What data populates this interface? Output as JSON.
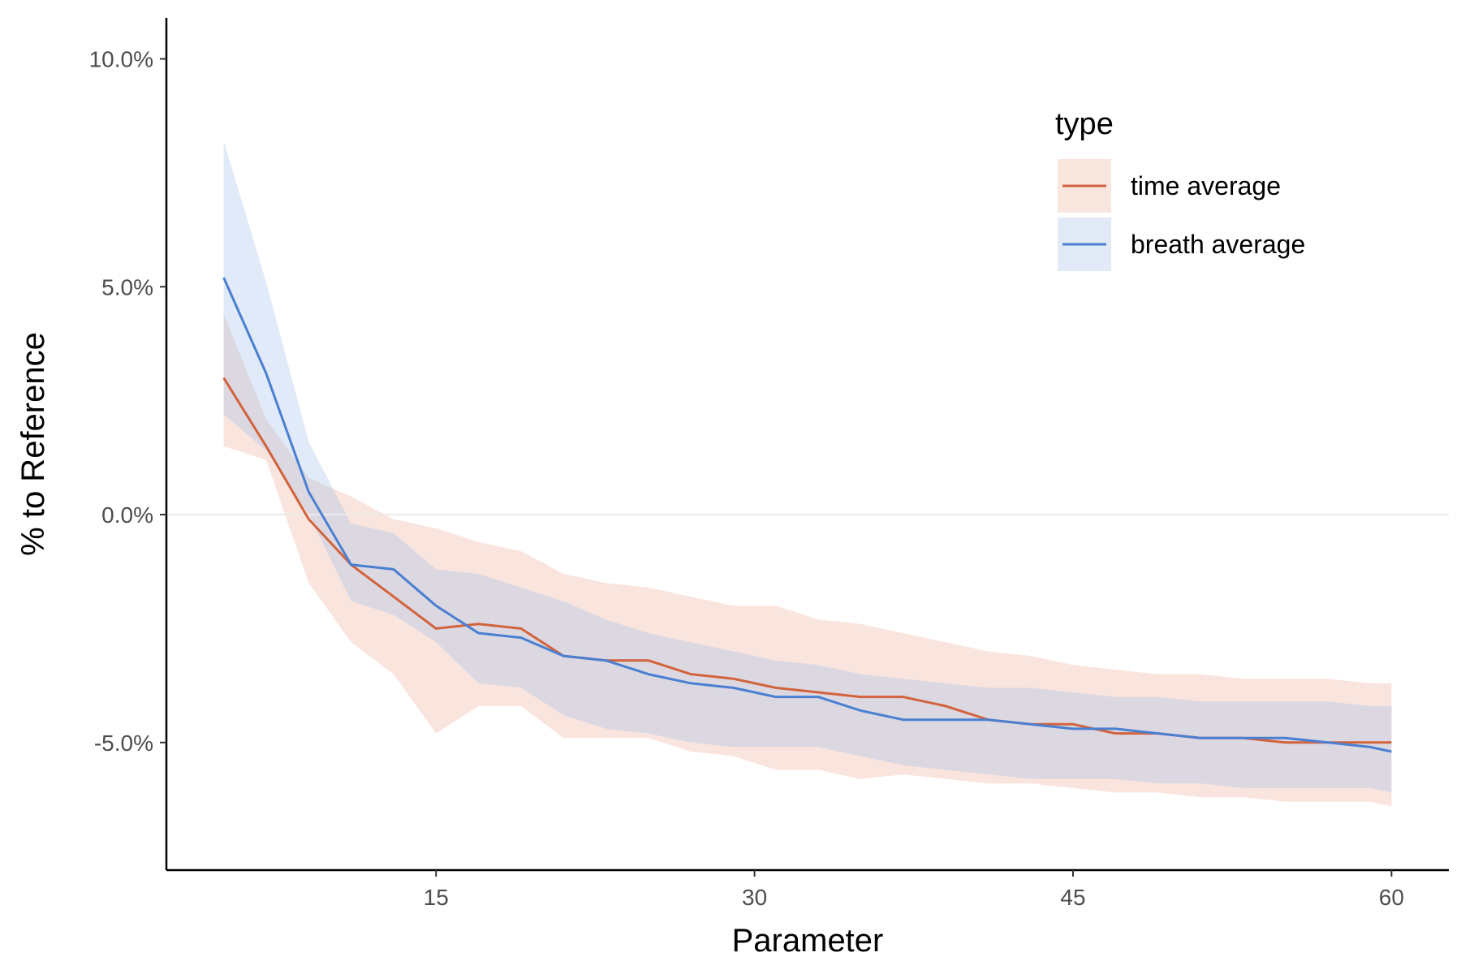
{
  "chart_data": {
    "type": "line",
    "xlabel": "Parameter",
    "ylabel": "% to Reference",
    "xlim": [
      2.3,
      62.7
    ],
    "ylim": [
      -7.8,
      10.9
    ],
    "xticks": [
      15,
      30,
      45,
      60
    ],
    "xtick_labels": [
      "15",
      "30",
      "45",
      "60"
    ],
    "yticks": [
      -5,
      0,
      5,
      10
    ],
    "ytick_labels": [
      "-5.0%",
      "0.0%",
      "5.0%",
      "10.0%"
    ],
    "reference_line": 0,
    "grid": false,
    "legend": {
      "title": "type",
      "position": "top-right",
      "entries": [
        "time average",
        "breath average"
      ]
    },
    "x": [
      5,
      7,
      9,
      11,
      13,
      15,
      17,
      19,
      21,
      23,
      25,
      27,
      29,
      31,
      33,
      35,
      37,
      39,
      41,
      43,
      45,
      47,
      49,
      51,
      53,
      55,
      57,
      59,
      60
    ],
    "series": [
      {
        "name": "time average",
        "color": "#d2633c",
        "band_color": "#f8e6df",
        "values": [
          3.0,
          1.5,
          -0.1,
          -1.1,
          -1.8,
          -2.5,
          -2.4,
          -2.5,
          -3.1,
          -3.2,
          -3.2,
          -3.5,
          -3.6,
          -3.8,
          -3.9,
          -4.0,
          -4.0,
          -4.2,
          -4.5,
          -4.6,
          -4.6,
          -4.8,
          -4.8,
          -4.9,
          -4.9,
          -5.0,
          -5.0,
          -5.0,
          -5.0
        ],
        "lower": [
          1.5,
          1.2,
          -1.5,
          -2.8,
          -3.5,
          -4.8,
          -4.2,
          -4.2,
          -4.9,
          -4.9,
          -4.9,
          -5.2,
          -5.3,
          -5.6,
          -5.6,
          -5.8,
          -5.7,
          -5.8,
          -5.9,
          -5.9,
          -6.0,
          -6.1,
          -6.1,
          -6.2,
          -6.2,
          -6.3,
          -6.3,
          -6.3,
          -6.4
        ],
        "upper": [
          4.4,
          2.1,
          0.8,
          0.4,
          -0.1,
          -0.3,
          -0.6,
          -0.8,
          -1.3,
          -1.5,
          -1.6,
          -1.8,
          -2.0,
          -2.0,
          -2.3,
          -2.4,
          -2.6,
          -2.8,
          -3.0,
          -3.1,
          -3.3,
          -3.4,
          -3.5,
          -3.5,
          -3.6,
          -3.6,
          -3.6,
          -3.7,
          -3.7
        ]
      },
      {
        "name": "breath average",
        "color": "#4a7fd1",
        "band_color": "#e2eaf8",
        "values": [
          5.2,
          3.1,
          0.5,
          -1.1,
          -1.2,
          -2.0,
          -2.6,
          -2.7,
          -3.1,
          -3.2,
          -3.5,
          -3.7,
          -3.8,
          -4.0,
          -4.0,
          -4.3,
          -4.5,
          -4.5,
          -4.5,
          -4.6,
          -4.7,
          -4.7,
          -4.8,
          -4.9,
          -4.9,
          -4.9,
          -5.0,
          -5.1,
          -5.2
        ],
        "lower": [
          2.2,
          1.4,
          0.0,
          -1.9,
          -2.2,
          -2.8,
          -3.7,
          -3.8,
          -4.4,
          -4.7,
          -4.8,
          -5.0,
          -5.1,
          -5.1,
          -5.1,
          -5.3,
          -5.5,
          -5.6,
          -5.7,
          -5.8,
          -5.8,
          -5.8,
          -5.9,
          -5.9,
          -6.0,
          -6.0,
          -6.0,
          -6.0,
          -6.1
        ],
        "upper": [
          8.2,
          5.1,
          1.6,
          -0.2,
          -0.4,
          -1.2,
          -1.3,
          -1.6,
          -1.9,
          -2.3,
          -2.6,
          -2.8,
          -3.0,
          -3.2,
          -3.3,
          -3.5,
          -3.6,
          -3.7,
          -3.8,
          -3.8,
          -3.9,
          -4.0,
          -4.0,
          -4.1,
          -4.1,
          -4.1,
          -4.1,
          -4.2,
          -4.2
        ]
      }
    ]
  }
}
